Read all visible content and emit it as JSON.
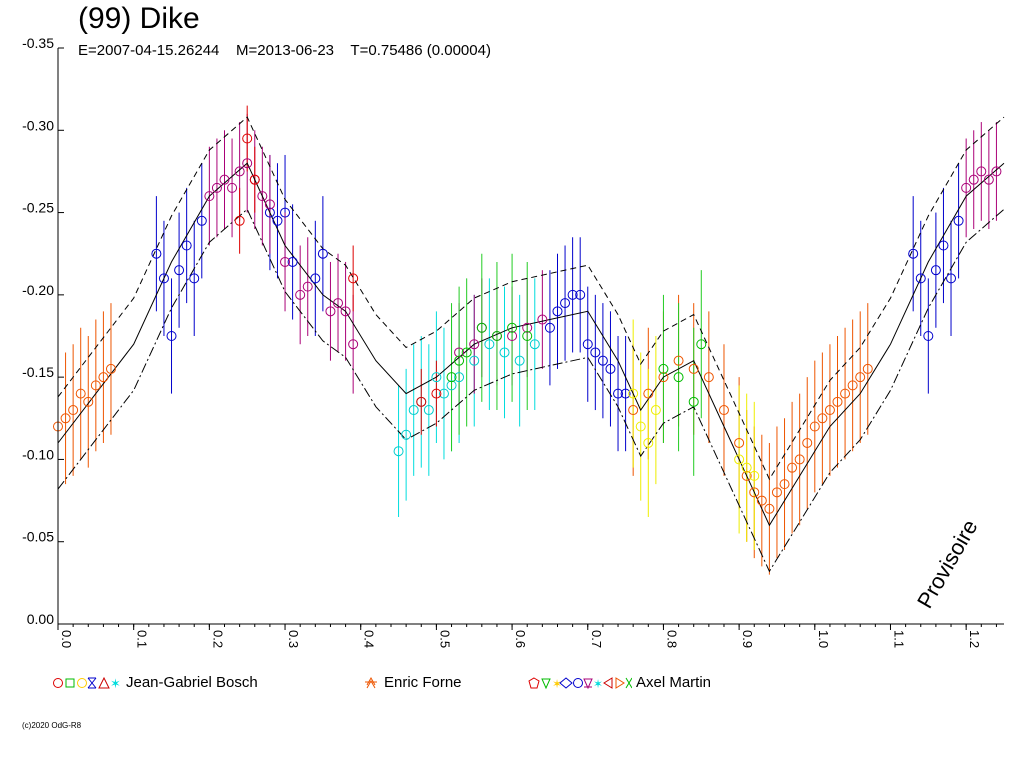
{
  "header": {
    "title": "(99) Dike",
    "subtitle": "E=2007-04-15.26244    M=2013-06-23    T=0.75486 (0.00004)"
  },
  "watermark": "Provisoire",
  "copyright": "(c)2020 OdG-R8",
  "legend": [
    {
      "name": "Jean-Gabriel Bosch",
      "colors": [
        "#dd0000",
        "#00bb00",
        "#ffcc00",
        "#0000cc",
        "#cc0000",
        "#00dddd"
      ]
    },
    {
      "name": "Enric Forne",
      "colors": [
        "#ee5500"
      ]
    },
    {
      "name": "Axel Martin",
      "colors": [
        "#dd0000",
        "#00bb00",
        "#ffcc00",
        "#0000cc",
        "#aa0077",
        "#00dddd",
        "#cc0000",
        "#ee5500",
        "#00bb00"
      ]
    }
  ],
  "chart_data": {
    "type": "scatter",
    "title": "(99) Dike",
    "xlabel": "",
    "ylabel": "",
    "xlim": [
      0.0,
      1.25
    ],
    "ylim": [
      0.0,
      -0.35
    ],
    "x_ticks": [
      "0.0",
      "0.1",
      "0.2",
      "0.3",
      "0.4",
      "0.5",
      "0.6",
      "0.7",
      "0.8",
      "0.9",
      "1.0",
      "1.1",
      "1.2"
    ],
    "y_ticks": [
      "0.00",
      "-0.05",
      "-0.10",
      "-0.15",
      "-0.20",
      "-0.25",
      "-0.30",
      "-0.35"
    ],
    "model_curve": {
      "x": [
        0.0,
        0.05,
        0.1,
        0.15,
        0.2,
        0.25,
        0.3,
        0.35,
        0.38,
        0.42,
        0.46,
        0.5,
        0.55,
        0.6,
        0.65,
        0.7,
        0.74,
        0.77,
        0.8,
        0.84,
        0.88,
        0.92,
        0.94,
        0.98,
        1.02,
        1.06,
        1.1,
        1.15,
        1.2,
        1.25
      ],
      "y": [
        -0.11,
        -0.14,
        -0.17,
        -0.22,
        -0.26,
        -0.28,
        -0.23,
        -0.2,
        -0.19,
        -0.16,
        -0.14,
        -0.15,
        -0.17,
        -0.18,
        -0.185,
        -0.19,
        -0.16,
        -0.13,
        -0.15,
        -0.16,
        -0.12,
        -0.08,
        -0.06,
        -0.09,
        -0.12,
        -0.14,
        -0.17,
        -0.22,
        -0.26,
        -0.28
      ],
      "upper_offset": 0.028,
      "lower_offset": -0.028
    },
    "series": [
      {
        "name": "Jean-Gabriel Bosch",
        "color": "#0000cc",
        "err_color": "#0000cc",
        "x": [
          0.13,
          0.14,
          0.15,
          0.16,
          0.17,
          0.18,
          0.19,
          0.28,
          0.29,
          0.3,
          0.31,
          0.34,
          0.35,
          0.65,
          0.66,
          0.67,
          0.68,
          0.69,
          0.7,
          0.71,
          0.72,
          0.73,
          0.74,
          0.75,
          1.13,
          1.14,
          1.15,
          1.16,
          1.17,
          1.18,
          1.19
        ],
        "y": [
          -0.225,
          -0.21,
          -0.175,
          -0.215,
          -0.23,
          -0.21,
          -0.245,
          -0.25,
          -0.245,
          -0.25,
          -0.22,
          -0.21,
          -0.225,
          -0.18,
          -0.19,
          -0.195,
          -0.2,
          -0.2,
          -0.17,
          -0.165,
          -0.16,
          -0.155,
          -0.14,
          -0.14,
          -0.225,
          -0.21,
          -0.175,
          -0.215,
          -0.23,
          -0.21,
          -0.245
        ],
        "err": 0.035
      },
      {
        "name": "Jean-Gabriel Bosch (cyan)",
        "color": "#00cccc",
        "err_color": "#00dddd",
        "x": [
          0.45,
          0.46,
          0.47,
          0.48,
          0.49,
          0.5,
          0.51,
          0.52,
          0.53,
          0.55,
          0.57,
          0.59,
          0.61,
          0.63
        ],
        "y": [
          -0.105,
          -0.115,
          -0.13,
          -0.135,
          -0.13,
          -0.15,
          -0.14,
          -0.145,
          -0.15,
          -0.16,
          -0.17,
          -0.165,
          -0.16,
          -0.17
        ],
        "err": 0.04
      },
      {
        "name": "Enric Forne",
        "color": "#ee5500",
        "err_color": "#ee5500",
        "x": [
          0.0,
          0.01,
          0.02,
          0.03,
          0.04,
          0.05,
          0.06,
          0.07,
          0.76,
          0.78,
          0.8,
          0.82,
          0.84,
          0.86,
          0.88,
          0.9,
          0.91,
          0.92,
          0.93,
          0.94,
          0.95,
          0.96,
          0.97,
          0.98,
          0.99,
          1.0,
          1.01,
          1.02,
          1.03,
          1.04,
          1.05,
          1.06,
          1.07
        ],
        "y": [
          -0.12,
          -0.125,
          -0.13,
          -0.14,
          -0.135,
          -0.145,
          -0.15,
          -0.155,
          -0.13,
          -0.14,
          -0.15,
          -0.16,
          -0.155,
          -0.15,
          -0.13,
          -0.11,
          -0.09,
          -0.08,
          -0.075,
          -0.07,
          -0.08,
          -0.085,
          -0.095,
          -0.1,
          -0.11,
          -0.12,
          -0.125,
          -0.13,
          -0.135,
          -0.14,
          -0.145,
          -0.15,
          -0.155
        ],
        "err": 0.04
      },
      {
        "name": "Axel Martin",
        "color": "#aa0077",
        "err_color": "#aa0077",
        "x": [
          0.2,
          0.21,
          0.22,
          0.23,
          0.24,
          0.25,
          0.26,
          0.27,
          0.28,
          0.3,
          0.32,
          0.33,
          0.36,
          0.37,
          0.38,
          0.39,
          0.53,
          0.55,
          0.56,
          0.58,
          0.6,
          0.62,
          0.64,
          1.2,
          1.21,
          1.22,
          1.23,
          1.24
        ],
        "y": [
          -0.26,
          -0.265,
          -0.27,
          -0.265,
          -0.275,
          -0.28,
          -0.27,
          -0.26,
          -0.255,
          -0.22,
          -0.2,
          -0.205,
          -0.19,
          -0.195,
          -0.19,
          -0.17,
          -0.165,
          -0.17,
          -0.18,
          -0.175,
          -0.175,
          -0.18,
          -0.185,
          -0.265,
          -0.27,
          -0.275,
          -0.27,
          -0.275
        ],
        "err": 0.03
      },
      {
        "name": "Axel Martin (red)",
        "color": "#dd0000",
        "err_color": "#dd0000",
        "x": [
          0.25,
          0.26,
          0.24,
          0.39,
          0.48,
          0.5
        ],
        "y": [
          -0.295,
          -0.27,
          -0.245,
          -0.21,
          -0.135,
          -0.14
        ],
        "err": 0.02
      },
      {
        "name": "Axel Martin (green)",
        "color": "#00bb00",
        "err_color": "#22cc22",
        "x": [
          0.52,
          0.53,
          0.54,
          0.56,
          0.58,
          0.6,
          0.62,
          0.8,
          0.82,
          0.84,
          0.85
        ],
        "y": [
          -0.15,
          -0.16,
          -0.165,
          -0.18,
          -0.175,
          -0.18,
          -0.175,
          -0.155,
          -0.15,
          -0.135,
          -0.17
        ],
        "err": 0.045
      },
      {
        "name": "Axel Martin (yellow)",
        "color": "#eeee00",
        "err_color": "#eeee00",
        "x": [
          0.76,
          0.77,
          0.78,
          0.79,
          0.9,
          0.91,
          0.92
        ],
        "y": [
          -0.14,
          -0.12,
          -0.11,
          -0.13,
          -0.1,
          -0.095,
          -0.09
        ],
        "err": 0.045
      }
    ]
  }
}
